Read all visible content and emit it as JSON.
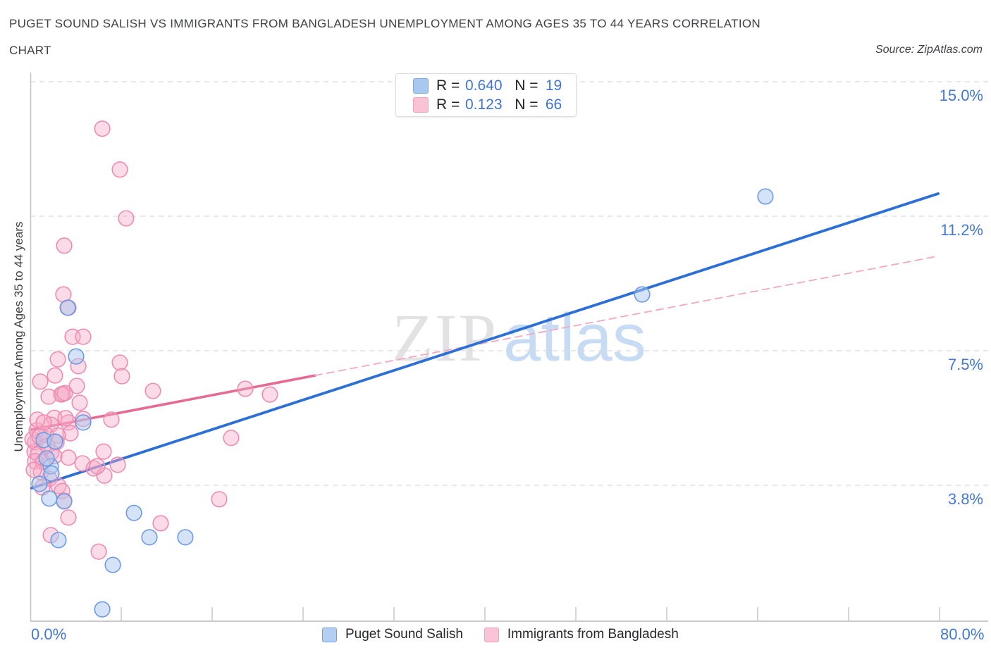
{
  "header": {
    "title_line1": "PUGET SOUND SALISH VS IMMIGRANTS FROM BANGLADESH UNEMPLOYMENT AMONG AGES 35 TO 44 YEARS CORRELATION",
    "title_line2": "CHART",
    "source": "Source: ZipAtlas.com"
  },
  "watermark": {
    "zip": "ZIP",
    "atlas": "atlas"
  },
  "stats_legend": {
    "rows": [
      {
        "series": "Puget Sound Salish",
        "r_label": "R =",
        "r_value": "0.640",
        "n_label": "N =",
        "n_value": "19"
      },
      {
        "series": "Immigrants from Bangladesh",
        "r_label": "R =",
        "r_value": "0.123",
        "n_label": "N =",
        "n_value": "66"
      }
    ]
  },
  "bottom_legend": {
    "items": [
      {
        "label": "Puget Sound Salish",
        "color": "#b3cff2",
        "border": "#729fe3"
      },
      {
        "label": "Immigrants from Bangladesh",
        "color": "#f9c4d7",
        "border": "#ef9fbe"
      }
    ]
  },
  "chart_data": {
    "type": "scatter",
    "title": "Puget Sound Salish vs Immigrants from Bangladesh Unemployment Among Ages 35 to 44 years Correlation Chart",
    "ylabel": "Unemployment Among Ages 35 to 44 years",
    "x_range": [
      0,
      80
    ],
    "y_range": [
      0,
      15
    ],
    "x_tick_labels": {
      "left": "0.0%",
      "right": "80.0%"
    },
    "x_ticks": [
      8,
      16,
      24,
      32,
      40,
      48,
      56,
      64,
      72,
      80
    ],
    "y_gridlines": [
      {
        "label": "15.0%",
        "value": 15.0
      },
      {
        "label": "11.2%",
        "value": 11.25
      },
      {
        "label": "7.5%",
        "value": 7.5
      },
      {
        "label": "3.8%",
        "value": 3.75
      }
    ],
    "grid": "horizontal-dashed",
    "legend_position": "bottom",
    "series": [
      {
        "id": "blue",
        "name": "Puget Sound Salish",
        "r": 0.64,
        "n": 19,
        "stroke": "#6d9ae1",
        "fill": "#a9c8f0",
        "fill_opacity": 0.5,
        "points": [
          [
            3.29,
            8.7
          ],
          [
            4.03,
            7.34
          ],
          [
            4.65,
            5.5
          ],
          [
            1.18,
            5.01
          ],
          [
            2.17,
            4.97
          ],
          [
            1.8,
            4.28
          ],
          [
            1.43,
            4.5
          ],
          [
            1.86,
            4.08
          ],
          [
            0.81,
            3.79
          ],
          [
            1.67,
            3.38
          ],
          [
            2.98,
            3.3
          ],
          [
            9.12,
            2.98
          ],
          [
            10.48,
            2.3
          ],
          [
            13.64,
            2.3
          ],
          [
            2.48,
            2.22
          ],
          [
            7.26,
            1.53
          ],
          [
            6.33,
            0.29
          ],
          [
            53.83,
            9.07
          ],
          [
            64.68,
            11.8
          ]
        ]
      },
      {
        "id": "pink",
        "name": "Immigrants from Bangladesh",
        "r": 0.123,
        "n": 66,
        "stroke": "#ee8cb1",
        "fill": "#f6a9c5",
        "fill_opacity": 0.42,
        "points": [
          [
            6.33,
            13.69
          ],
          [
            7.88,
            12.55
          ],
          [
            8.43,
            11.19
          ],
          [
            2.98,
            10.43
          ],
          [
            2.91,
            9.07
          ],
          [
            3.35,
            8.7
          ],
          [
            3.72,
            7.89
          ],
          [
            4.65,
            7.89
          ],
          [
            2.42,
            7.26
          ],
          [
            4.22,
            7.07
          ],
          [
            2.17,
            6.81
          ],
          [
            0.87,
            6.64
          ],
          [
            4.09,
            6.52
          ],
          [
            2.85,
            6.3
          ],
          [
            1.61,
            6.22
          ],
          [
            2.73,
            6.28
          ],
          [
            3.04,
            6.32
          ],
          [
            4.34,
            6.05
          ],
          [
            7.88,
            7.17
          ],
          [
            8.06,
            6.79
          ],
          [
            10.79,
            6.38
          ],
          [
            2.11,
            5.63
          ],
          [
            3.35,
            5.5
          ],
          [
            4.65,
            5.6
          ],
          [
            7.13,
            5.58
          ],
          [
            18.91,
            6.44
          ],
          [
            21.08,
            6.28
          ],
          [
            17.67,
            5.07
          ],
          [
            16.62,
            3.36
          ],
          [
            11.47,
            2.69
          ],
          [
            6.02,
            1.9
          ],
          [
            1.8,
            2.36
          ],
          [
            3.35,
            2.85
          ],
          [
            1.8,
            5.44
          ],
          [
            3.53,
            5.2
          ],
          [
            1.36,
            5.16
          ],
          [
            0.43,
            4.95
          ],
          [
            0.37,
            4.69
          ],
          [
            0.68,
            4.61
          ],
          [
            1.86,
            4.67
          ],
          [
            0.43,
            4.42
          ],
          [
            1.12,
            4.4
          ],
          [
            3.35,
            4.52
          ],
          [
            4.59,
            4.36
          ],
          [
            6.45,
            4.69
          ],
          [
            5.58,
            4.22
          ],
          [
            0.93,
            4.12
          ],
          [
            1.67,
            3.93
          ],
          [
            2.48,
            3.73
          ],
          [
            2.79,
            3.59
          ],
          [
            2.98,
            3.32
          ],
          [
            6.51,
            4.02
          ],
          [
            0.19,
            5.03
          ],
          [
            0.56,
            5.28
          ],
          [
            2.42,
            5.14
          ],
          [
            7.69,
            4.32
          ],
          [
            5.89,
            4.28
          ],
          [
            3.1,
            5.62
          ],
          [
            0.62,
            5.58
          ],
          [
            1.18,
            5.5
          ],
          [
            0.81,
            5.1
          ],
          [
            1.49,
            4.85
          ],
          [
            2.11,
            4.56
          ],
          [
            0.31,
            4.18
          ],
          [
            1.05,
            3.69
          ],
          [
            2.3,
            4.95
          ]
        ]
      }
    ],
    "trendlines": [
      {
        "id": "bangladesh-solid",
        "series": "Immigrants from Bangladesh",
        "style": "solid",
        "color": "#e66a94",
        "width": 3.6,
        "points": [
          [
            0.12,
            5.3
          ],
          [
            25.05,
            6.81
          ]
        ]
      },
      {
        "id": "bangladesh-dashed",
        "series": "Immigrants from Bangladesh",
        "style": "dashed",
        "color": "#f2a8c0",
        "width": 1.8,
        "points": [
          [
            25.05,
            6.81
          ],
          [
            79.75,
            10.13
          ]
        ]
      },
      {
        "id": "salish-solid",
        "series": "Puget Sound Salish",
        "style": "solid",
        "color": "#2c6fd6",
        "width": 3.8,
        "points": [
          [
            0.12,
            3.67
          ],
          [
            79.88,
            11.88
          ]
        ]
      }
    ]
  }
}
